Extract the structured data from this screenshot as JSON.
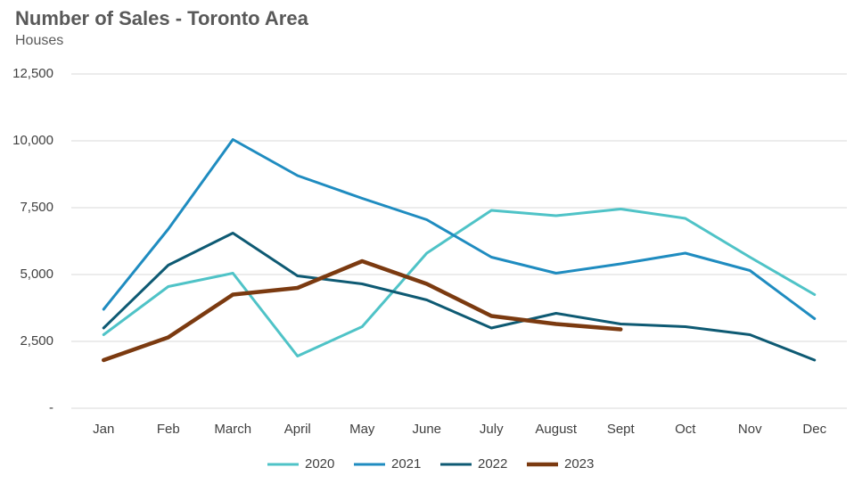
{
  "chart_data": {
    "type": "line",
    "title": "Number of Sales - Toronto Area",
    "subtitle": "Houses",
    "categories": [
      "Jan",
      "Feb",
      "March",
      "April",
      "May",
      "June",
      "July",
      "August",
      "Sept",
      "Oct",
      "Nov",
      "Dec"
    ],
    "series": [
      {
        "name": "2020",
        "color": "#4fc3c7",
        "values": [
          2750,
          4550,
          5050,
          1950,
          3050,
          5800,
          7400,
          7200,
          7450,
          7100,
          5650,
          4250
        ]
      },
      {
        "name": "2021",
        "color": "#1f8cc0",
        "values": [
          3700,
          6700,
          10050,
          8700,
          7850,
          7050,
          5650,
          5050,
          5400,
          5800,
          5150,
          3350
        ]
      },
      {
        "name": "2022",
        "color": "#0e5a73",
        "values": [
          3000,
          5350,
          6550,
          4950,
          4650,
          4050,
          3000,
          3550,
          3150,
          3050,
          2750,
          1800
        ]
      },
      {
        "name": "2023",
        "color": "#7b3a10",
        "values": [
          1800,
          2650,
          4250,
          4500,
          5500,
          4650,
          3450,
          3150,
          2950,
          null,
          null,
          null
        ]
      }
    ],
    "ylim": [
      0,
      12500
    ],
    "yticks": [
      {
        "value": 0,
        "label": "-"
      },
      {
        "value": 2500,
        "label": "2,500"
      },
      {
        "value": 5000,
        "label": "5,000"
      },
      {
        "value": 7500,
        "label": "7,500"
      },
      {
        "value": 10000,
        "label": "10,000"
      },
      {
        "value": 12500,
        "label": "12,500"
      }
    ],
    "grid": true,
    "legend": "bottom"
  }
}
